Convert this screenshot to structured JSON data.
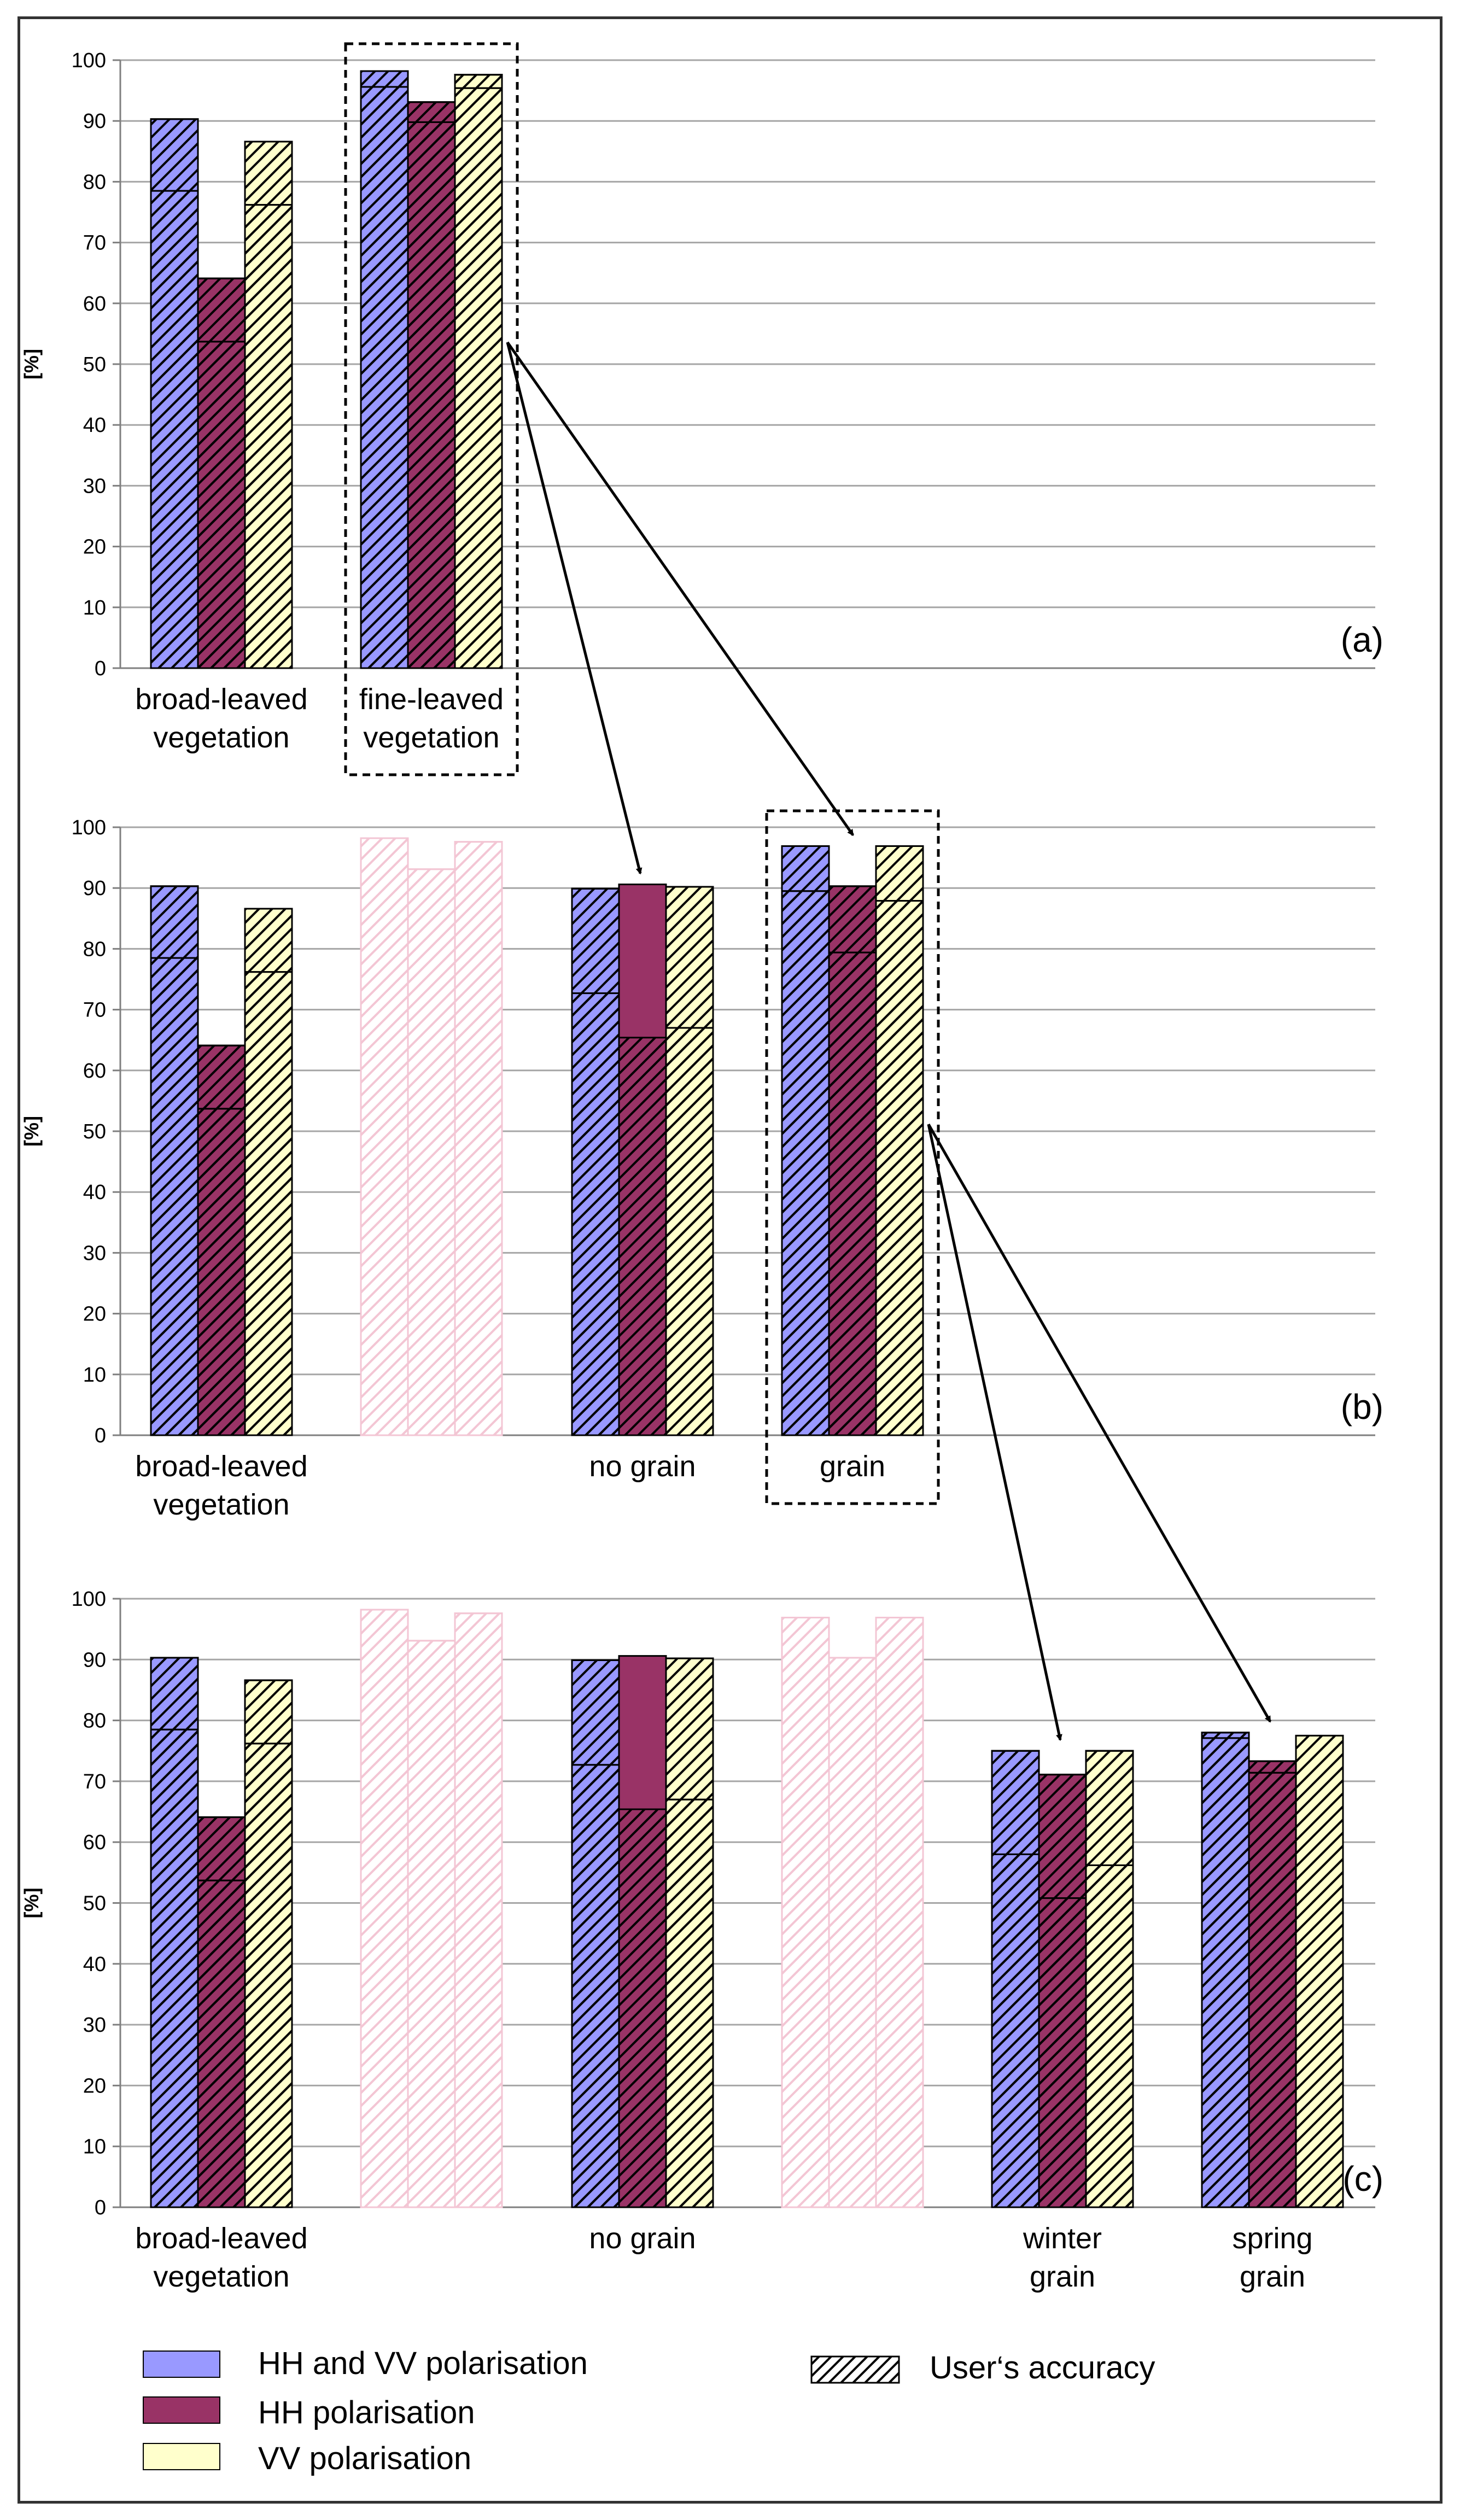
{
  "colors": {
    "hh_vv": "#9999ff",
    "hh": "#993366",
    "vv": "#ffffcc",
    "faded": "#f3c6d4",
    "gridline": "#a6a6a6",
    "bar_edge": "#000000"
  },
  "legend": {
    "items": [
      {
        "key": "hh_vv",
        "label": "HH and VV polarisation"
      },
      {
        "key": "hh",
        "label": "HH polarisation"
      },
      {
        "key": "vv",
        "label": " VV polarisation"
      }
    ],
    "hatch_label": "User‘s accuracy"
  },
  "chart_data": [
    {
      "type": "bar",
      "panel_label": "(a)",
      "ylabel": "[%]",
      "ylim": [
        0,
        100
      ],
      "yticks": [
        0,
        10,
        20,
        30,
        40,
        50,
        60,
        70,
        80,
        90,
        100
      ],
      "grid": true,
      "groups": [
        {
          "label": [
            "broad-leaved",
            "vegetation"
          ],
          "faded": false,
          "highlight": false,
          "bars": [
            {
              "series": "hh_vv",
              "producer": 78.5,
              "user": 90.3
            },
            {
              "series": "hh",
              "producer": 53.7,
              "user": 64.1
            },
            {
              "series": "vv",
              "producer": 76.2,
              "user": 86.6
            }
          ]
        },
        {
          "label": [
            "fine-leaved",
            "vegetation"
          ],
          "faded": false,
          "highlight": true,
          "bars": [
            {
              "series": "hh_vv",
              "producer": 95.6,
              "user": 98.2
            },
            {
              "series": "hh",
              "producer": 89.8,
              "user": 93.1
            },
            {
              "series": "vv",
              "producer": 95.4,
              "user": 97.6
            }
          ]
        }
      ]
    },
    {
      "type": "bar",
      "panel_label": "(b)",
      "ylabel": "[%]",
      "ylim": [
        0,
        100
      ],
      "yticks": [
        0,
        10,
        20,
        30,
        40,
        50,
        60,
        70,
        80,
        90,
        100
      ],
      "grid": true,
      "groups": [
        {
          "label": [
            "broad-leaved",
            "vegetation"
          ],
          "faded": false,
          "highlight": false,
          "bars": [
            {
              "series": "hh_vv",
              "producer": 78.5,
              "user": 90.3
            },
            {
              "series": "hh",
              "producer": 53.7,
              "user": 64.1
            },
            {
              "series": "vv",
              "producer": 76.2,
              "user": 86.6
            }
          ]
        },
        {
          "label": [],
          "faded": true,
          "highlight": false,
          "bars": [
            {
              "series": "hh_vv",
              "producer": 95.6,
              "user": 98.2
            },
            {
              "series": "hh",
              "producer": 89.8,
              "user": 93.1
            },
            {
              "series": "vv",
              "producer": 95.4,
              "user": 97.6
            }
          ]
        },
        {
          "label": [
            "no grain"
          ],
          "faded": false,
          "highlight": false,
          "bars": [
            {
              "series": "hh_vv",
              "producer": 72.7,
              "user": 89.9
            },
            {
              "series": "hh",
              "producer": 90.6,
              "user": 65.4
            },
            {
              "series": "vv",
              "producer": 67.0,
              "user": 90.2
            }
          ]
        },
        {
          "label": [
            "grain"
          ],
          "faded": false,
          "highlight": true,
          "bars": [
            {
              "series": "hh_vv",
              "producer": 89.5,
              "user": 96.9
            },
            {
              "series": "hh",
              "producer": 79.4,
              "user": 90.3
            },
            {
              "series": "vv",
              "producer": 87.9,
              "user": 96.9
            }
          ]
        }
      ]
    },
    {
      "type": "bar",
      "panel_label": "(c)",
      "ylabel": "[%]",
      "ylim": [
        0,
        100
      ],
      "yticks": [
        0,
        10,
        20,
        30,
        40,
        50,
        60,
        70,
        80,
        90,
        100
      ],
      "grid": true,
      "groups": [
        {
          "label": [
            "broad-leaved",
            "vegetation"
          ],
          "faded": false,
          "highlight": false,
          "bars": [
            {
              "series": "hh_vv",
              "producer": 78.5,
              "user": 90.3
            },
            {
              "series": "hh",
              "producer": 53.7,
              "user": 64.1
            },
            {
              "series": "vv",
              "producer": 76.2,
              "user": 86.6
            }
          ]
        },
        {
          "label": [],
          "faded": true,
          "highlight": false,
          "bars": [
            {
              "series": "hh_vv",
              "producer": 95.6,
              "user": 98.2
            },
            {
              "series": "hh",
              "producer": 89.8,
              "user": 93.1
            },
            {
              "series": "vv",
              "producer": 95.4,
              "user": 97.6
            }
          ]
        },
        {
          "label": [
            "no grain"
          ],
          "faded": false,
          "highlight": false,
          "bars": [
            {
              "series": "hh_vv",
              "producer": 72.7,
              "user": 89.9
            },
            {
              "series": "hh",
              "producer": 90.6,
              "user": 65.4
            },
            {
              "series": "vv",
              "producer": 67.0,
              "user": 90.2
            }
          ]
        },
        {
          "label": [],
          "faded": true,
          "highlight": false,
          "bars": [
            {
              "series": "hh_vv",
              "producer": 89.5,
              "user": 96.9
            },
            {
              "series": "hh",
              "producer": 79.4,
              "user": 90.3
            },
            {
              "series": "vv",
              "producer": 87.9,
              "user": 96.9
            }
          ]
        },
        {
          "label": [
            "winter",
            "grain"
          ],
          "faded": false,
          "highlight": false,
          "bars": [
            {
              "series": "hh_vv",
              "producer": 58.0,
              "user": 75.0
            },
            {
              "series": "hh",
              "producer": 50.8,
              "user": 71.1
            },
            {
              "series": "vv",
              "producer": 56.2,
              "user": 75.0
            }
          ]
        },
        {
          "label": [
            "spring",
            "grain"
          ],
          "faded": false,
          "highlight": false,
          "bars": [
            {
              "series": "hh_vv",
              "producer": 77.1,
              "user": 78.0
            },
            {
              "series": "hh",
              "producer": 71.4,
              "user": 73.3
            },
            {
              "series": "vv",
              "producer": 77.5,
              "user": 77.5
            }
          ]
        }
      ]
    }
  ]
}
